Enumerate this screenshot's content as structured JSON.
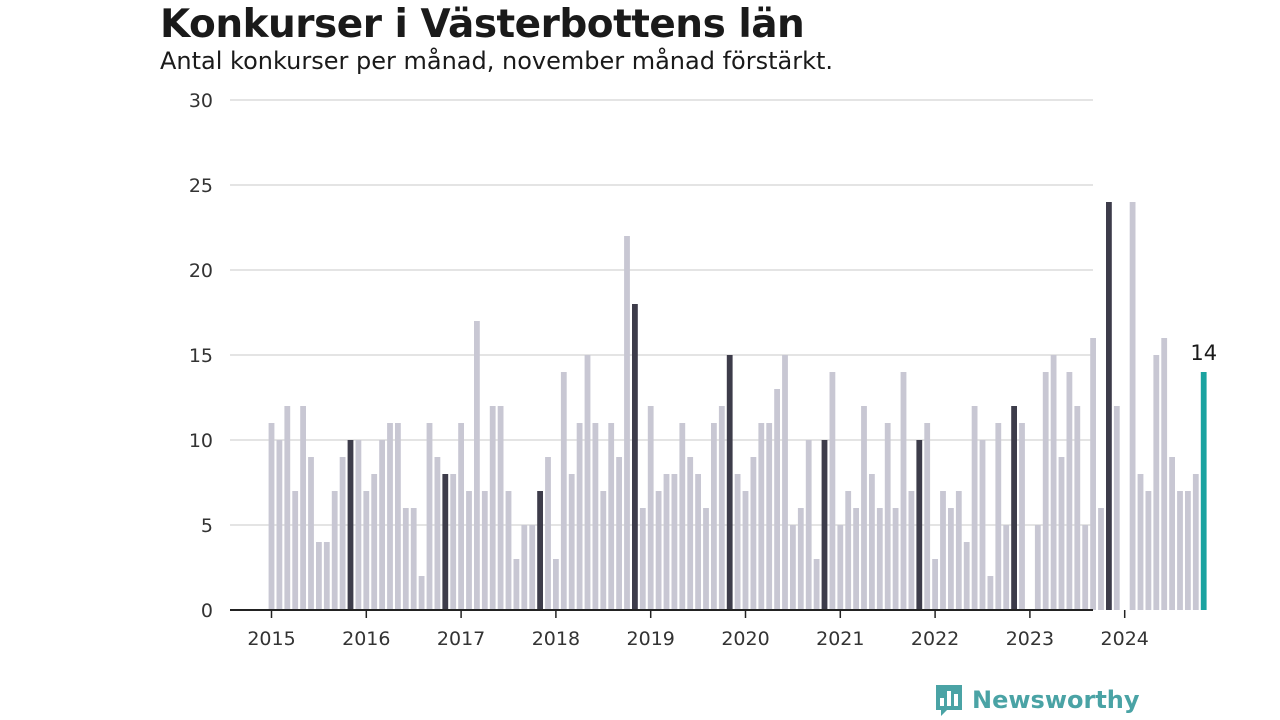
{
  "title": "Konkurser i Västerbottens län",
  "subtitle": "Antal konkurser per månad, november månad förstärkt.",
  "brand": {
    "name": "Newsworthy",
    "color": "#4aa3a5"
  },
  "colors": {
    "default": "#c8c7d3",
    "november": "#3d3c4a",
    "latest": "#1aa3a0"
  },
  "chart_data": {
    "type": "bar",
    "title": "Konkurser i Västerbottens län",
    "subtitle": "Antal konkurser per månad, november månad förstärkt.",
    "xlabel": "",
    "ylabel": "",
    "ylim": [
      0,
      30
    ],
    "yticks": [
      0,
      5,
      10,
      15,
      20,
      25,
      30
    ],
    "xticks": [
      "2015",
      "2016",
      "2017",
      "2018",
      "2019",
      "2020",
      "2021",
      "2022",
      "2023",
      "2024"
    ],
    "grid": true,
    "start": "2015-01",
    "highlight": "november",
    "annotation": {
      "label": "14",
      "period": "2024-11"
    },
    "series": [
      {
        "year": "2015",
        "values": [
          11,
          10,
          12,
          7,
          12,
          9,
          4,
          4,
          7,
          9,
          10,
          10
        ]
      },
      {
        "year": "2016",
        "values": [
          7,
          8,
          10,
          11,
          11,
          6,
          6,
          2,
          11,
          9,
          8,
          8
        ]
      },
      {
        "year": "2017",
        "values": [
          11,
          7,
          17,
          7,
          12,
          12,
          7,
          3,
          5,
          5,
          7,
          9
        ]
      },
      {
        "year": "2018",
        "values": [
          3,
          14,
          8,
          11,
          15,
          11,
          7,
          11,
          9,
          22,
          18,
          6
        ]
      },
      {
        "year": "2019",
        "values": [
          12,
          7,
          8,
          8,
          11,
          9,
          8,
          6,
          11,
          12,
          15,
          8
        ]
      },
      {
        "year": "2020",
        "values": [
          7,
          9,
          11,
          11,
          13,
          15,
          5,
          6,
          10,
          3,
          10,
          14
        ]
      },
      {
        "year": "2021",
        "values": [
          5,
          7,
          6,
          12,
          8,
          6,
          11,
          6,
          14,
          7,
          10,
          11
        ]
      },
      {
        "year": "2022",
        "values": [
          3,
          7,
          6,
          7,
          4,
          12,
          10,
          2,
          11,
          5,
          12,
          11
        ]
      },
      {
        "year": "2023",
        "values": [
          0,
          5,
          14,
          15,
          9,
          14,
          12,
          5,
          16,
          6,
          24,
          12
        ]
      },
      {
        "year": "2024",
        "values": [
          0,
          24,
          8,
          7,
          15,
          16,
          9,
          7,
          7,
          8,
          14
        ]
      }
    ]
  }
}
